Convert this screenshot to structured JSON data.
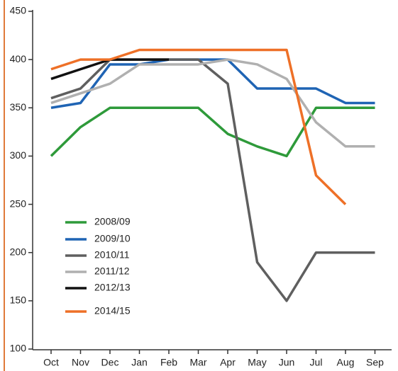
{
  "chart_data": {
    "type": "line",
    "categories": [
      "Oct",
      "Nov",
      "Dec",
      "Jan",
      "Feb",
      "Mar",
      "Apr",
      "May",
      "Jun",
      "Jul",
      "Aug",
      "Sep"
    ],
    "series": [
      {
        "name": "2008/09",
        "color": "#2e9a3a",
        "values": [
          300,
          330,
          350,
          350,
          350,
          350,
          323,
          310,
          300,
          350,
          350,
          350
        ]
      },
      {
        "name": "2009/10",
        "color": "#1f64b4",
        "values": [
          350,
          355,
          395,
          395,
          400,
          400,
          400,
          370,
          370,
          370,
          355,
          355
        ]
      },
      {
        "name": "2010/11",
        "color": "#5f5f5f",
        "values": [
          360,
          370,
          400,
          400,
          400,
          400,
          375,
          190,
          150,
          200,
          200,
          200
        ]
      },
      {
        "name": "2011/12",
        "color": "#b0b0b0",
        "values": [
          355,
          365,
          375,
          395,
          395,
          395,
          400,
          395,
          380,
          335,
          310,
          310
        ]
      },
      {
        "name": "2012/13",
        "color": "#111111",
        "values": [
          380,
          390,
          400,
          400,
          400,
          null,
          null,
          null,
          null,
          null,
          null,
          null
        ]
      },
      {
        "name": "2014/15",
        "color": "#ee7027",
        "values": [
          390,
          400,
          400,
          410,
          410,
          410,
          410,
          410,
          410,
          280,
          250,
          null
        ]
      }
    ],
    "ylim": [
      100,
      450
    ],
    "yticks": [
      100,
      150,
      200,
      250,
      300,
      350,
      400,
      450
    ]
  }
}
